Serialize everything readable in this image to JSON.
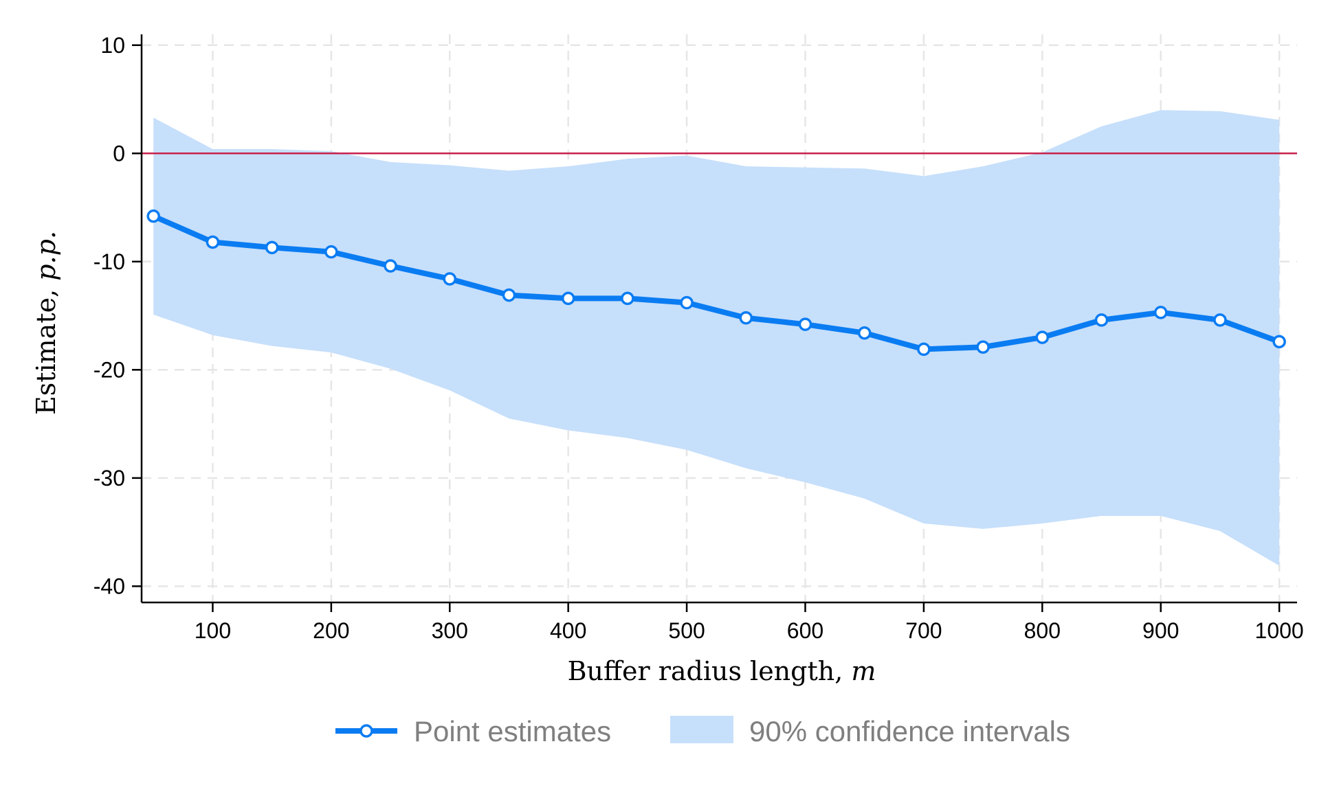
{
  "chart_data": {
    "type": "line",
    "xlabel": "Buffer radius length, ",
    "xlabel_var": "m",
    "ylabel": "Estimate, ",
    "ylabel_var": "p.p.",
    "xlim": [
      40,
      1015
    ],
    "ylim": [
      -41.5,
      11
    ],
    "xticks": [
      100,
      200,
      300,
      400,
      500,
      600,
      700,
      800,
      900,
      1000
    ],
    "yticks": [
      10,
      0,
      -10,
      -20,
      -30,
      -40
    ],
    "grid": true,
    "reference_line": {
      "y": 0,
      "color": "#c8204c"
    },
    "colors": {
      "line": "#0a7cf2",
      "band": "#c6dffb",
      "marker_fill": "#ffffff"
    },
    "x": [
      50,
      100,
      150,
      200,
      250,
      300,
      350,
      400,
      450,
      500,
      550,
      600,
      650,
      700,
      750,
      800,
      850,
      900,
      950,
      1000
    ],
    "series": [
      {
        "name": "Point estimates",
        "values": [
          -5.8,
          -8.2,
          -8.7,
          -9.1,
          -10.4,
          -11.6,
          -13.1,
          -13.4,
          -13.4,
          -13.8,
          -15.2,
          -15.8,
          -16.6,
          -18.1,
          -17.9,
          -17.0,
          -15.4,
          -14.7,
          -15.4,
          -17.4
        ]
      },
      {
        "name": "90% confidence intervals",
        "type": "band",
        "lower": [
          -14.9,
          -16.8,
          -17.8,
          -18.4,
          -19.9,
          -21.9,
          -24.5,
          -25.6,
          -26.3,
          -27.4,
          -29.1,
          -30.4,
          -31.9,
          -34.2,
          -34.7,
          -34.2,
          -33.5,
          -33.5,
          -34.9,
          -38.1
        ],
        "upper": [
          3.3,
          0.4,
          0.4,
          0.2,
          -0.8,
          -1.1,
          -1.6,
          -1.2,
          -0.5,
          -0.2,
          -1.2,
          -1.3,
          -1.4,
          -2.1,
          -1.2,
          0.1,
          2.5,
          4.0,
          3.9,
          3.1
        ]
      }
    ],
    "legend": {
      "position": "bottom"
    }
  }
}
